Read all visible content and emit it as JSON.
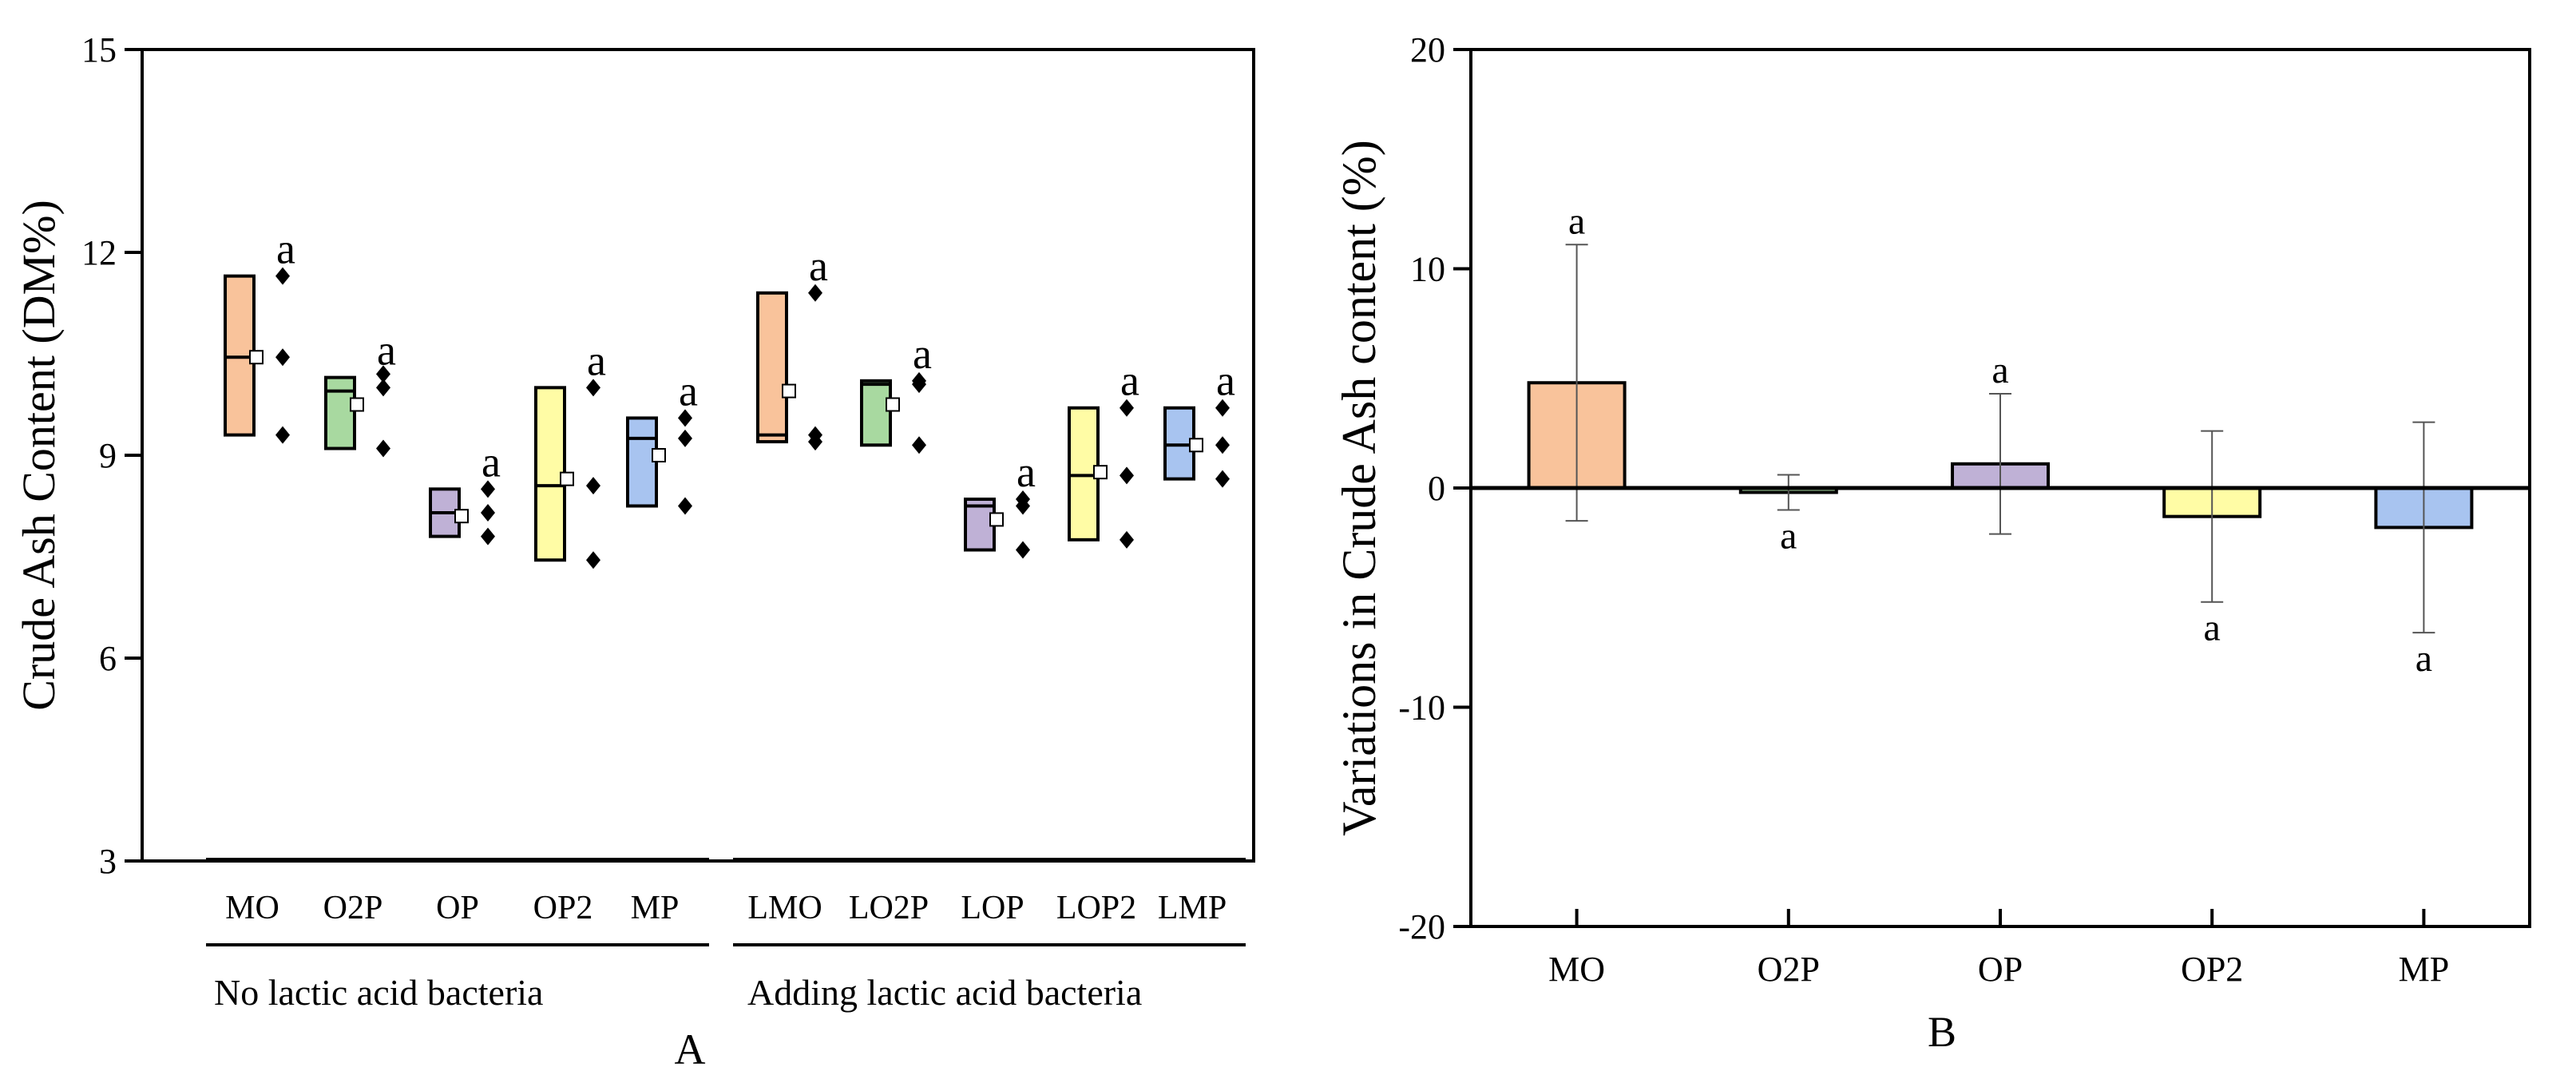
{
  "chart_data": [
    {
      "id": "A",
      "type": "box",
      "panel_label": "A",
      "ylabel": "Crude Ash Content (DM%)",
      "ylim": [
        3,
        15
      ],
      "yticks": [
        3,
        6,
        9,
        12,
        15
      ],
      "groups": [
        {
          "label": "No lactic acid bacteria",
          "members": [
            "MO",
            "O2P",
            "OP",
            "OP2",
            "MP"
          ]
        },
        {
          "label": "Adding lactic acid bacteria",
          "members": [
            "LMO",
            "LO2P",
            "LOP",
            "LOP2",
            "LMP"
          ]
        }
      ],
      "series": [
        {
          "name": "MO",
          "color": "#F9C39B",
          "q1": 9.3,
          "median": 10.45,
          "q3": 11.65,
          "mean": 10.45,
          "points": [
            11.65,
            10.45,
            9.3
          ],
          "letter": "a"
        },
        {
          "name": "O2P",
          "color": "#A8D9A0",
          "q1": 9.1,
          "median": 9.95,
          "q3": 10.15,
          "mean": 9.75,
          "points": [
            10.2,
            10.0,
            9.1
          ],
          "letter": "a"
        },
        {
          "name": "OP",
          "color": "#BFB1D6",
          "q1": 7.8,
          "median": 8.15,
          "q3": 8.5,
          "mean": 8.1,
          "points": [
            8.5,
            8.15,
            7.8
          ],
          "letter": "a"
        },
        {
          "name": "OP2",
          "color": "#FFFCA5",
          "q1": 7.45,
          "median": 8.55,
          "q3": 10.0,
          "mean": 8.65,
          "points": [
            10.0,
            8.55,
            7.45
          ],
          "letter": "a"
        },
        {
          "name": "MP",
          "color": "#A8C4F0",
          "q1": 8.25,
          "median": 9.25,
          "q3": 9.55,
          "mean": 9.0,
          "points": [
            9.55,
            9.25,
            8.25
          ],
          "letter": "a"
        },
        {
          "name": "LMO",
          "color": "#F9C39B",
          "q1": 9.2,
          "median": 9.3,
          "q3": 11.4,
          "mean": 9.95,
          "points": [
            11.4,
            9.3,
            9.2
          ],
          "letter": "a"
        },
        {
          "name": "LO2P",
          "color": "#A8D9A0",
          "q1": 9.15,
          "median": 10.05,
          "q3": 10.1,
          "mean": 9.75,
          "points": [
            10.1,
            10.05,
            9.15
          ],
          "letter": "a"
        },
        {
          "name": "LOP",
          "color": "#BFB1D6",
          "q1": 7.6,
          "median": 8.25,
          "q3": 8.35,
          "mean": 8.05,
          "points": [
            8.35,
            8.25,
            7.6
          ],
          "letter": "a"
        },
        {
          "name": "LOP2",
          "color": "#FFFCA5",
          "q1": 7.75,
          "median": 8.7,
          "q3": 9.7,
          "mean": 8.75,
          "points": [
            9.7,
            8.7,
            7.75
          ],
          "letter": "a"
        },
        {
          "name": "LMP",
          "color": "#A8C4F0",
          "q1": 8.65,
          "median": 9.15,
          "q3": 9.7,
          "mean": 9.15,
          "points": [
            9.7,
            9.15,
            8.65
          ],
          "letter": "a"
        }
      ]
    },
    {
      "id": "B",
      "type": "bar",
      "panel_label": "B",
      "ylabel": "Variations in Crude Ash  content  (%)",
      "ylim": [
        -20,
        20
      ],
      "yticks": [
        -20,
        -10,
        0,
        10,
        20
      ],
      "categories": [
        "MO",
        "O2P",
        "OP",
        "OP2",
        "MP"
      ],
      "values": [
        4.8,
        -0.2,
        1.1,
        -1.3,
        -1.8
      ],
      "error": [
        6.3,
        0.8,
        3.2,
        3.9,
        4.8
      ],
      "colors": [
        "#F9C39B",
        "#A8D9A0",
        "#BFB1D6",
        "#FFFCA5",
        "#A8C4F0"
      ],
      "letters": [
        "a",
        "a",
        "a",
        "a",
        "a"
      ]
    }
  ]
}
